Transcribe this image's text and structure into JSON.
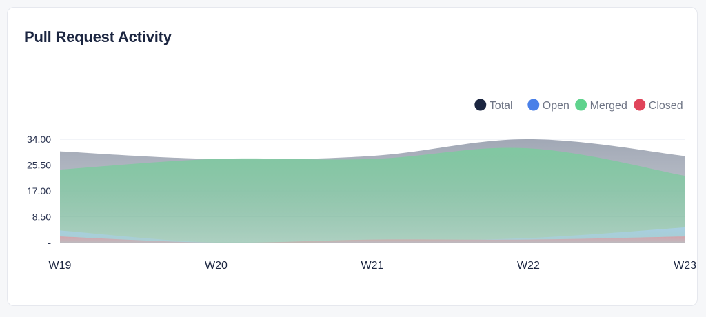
{
  "card": {
    "title": "Pull Request Activity"
  },
  "chart_data": {
    "type": "area",
    "categories": [
      "W19",
      "W20",
      "W21",
      "W22",
      "W23"
    ],
    "y_tick_labels": [
      "34.00",
      "25.50",
      "17.00",
      "8.50",
      "-"
    ],
    "y_ticks": [
      34,
      25.5,
      17,
      8.5,
      0
    ],
    "ylim": [
      0,
      34
    ],
    "grid": true,
    "legend_position": "top-right",
    "series": [
      {
        "name": "Total",
        "values": [
          30,
          27.5,
          28.5,
          34,
          28.5
        ],
        "color": "#1b2540",
        "fill": "#9ca3b1"
      },
      {
        "name": "Merged",
        "values": [
          24,
          27.5,
          27.5,
          31,
          22
        ],
        "color": "#5fd38d",
        "fill": "#7fc9a0"
      },
      {
        "name": "Open",
        "values": [
          4,
          0,
          0.5,
          1.5,
          5
        ],
        "color": "#4a80e8",
        "fill": "#a8cfe4"
      },
      {
        "name": "Closed",
        "values": [
          2,
          0,
          1,
          1,
          2
        ],
        "color": "#e0445a",
        "fill": "#d6a2a9"
      }
    ],
    "legend": [
      "Total",
      "Open",
      "Merged",
      "Closed"
    ]
  }
}
